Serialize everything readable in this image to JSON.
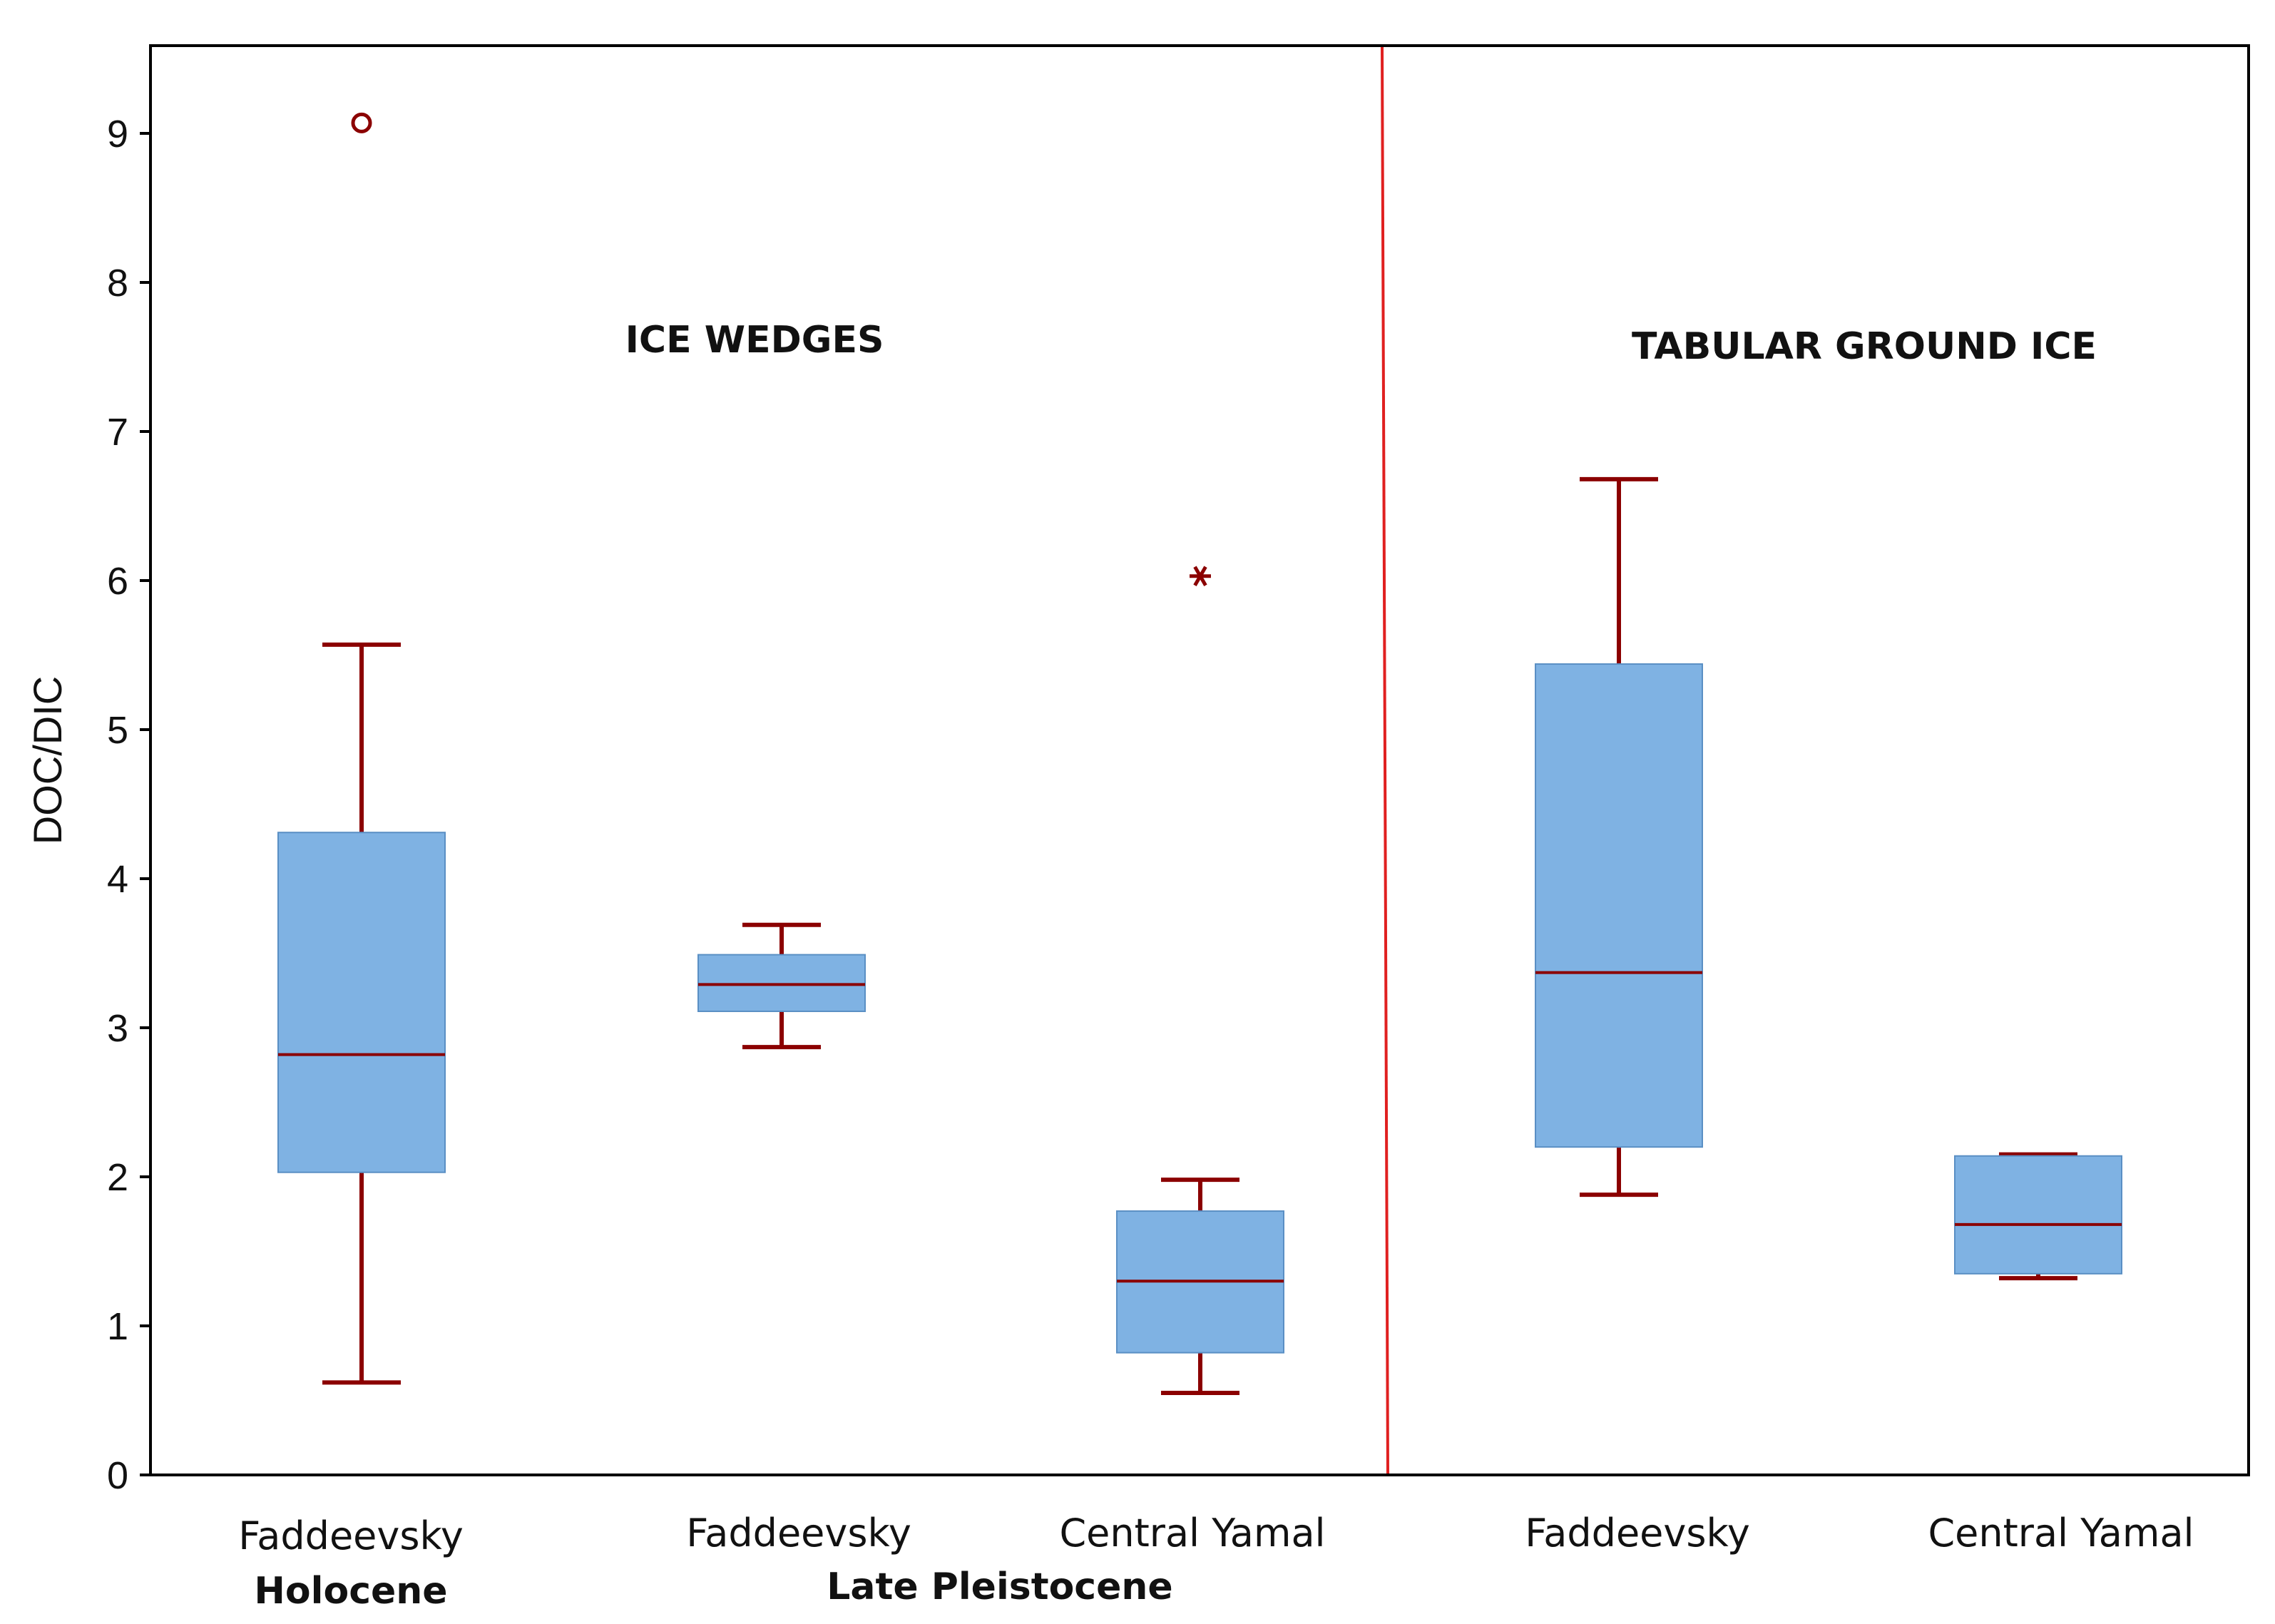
{
  "colors": {
    "box_fill": "#7fb2e3",
    "box_stroke": "#5a8fc4",
    "whisker": "#8b0000",
    "divider": "#e02020",
    "axis": "#000000"
  },
  "chart_data": {
    "type": "boxplot",
    "ylabel": "DOC/DIC",
    "ylim": [
      0,
      9.6
    ],
    "yticks": [
      0,
      1,
      2,
      3,
      4,
      5,
      6,
      7,
      8,
      9
    ],
    "regions": [
      {
        "label": "ICE WEDGES"
      },
      {
        "label": "TABULAR GROUND ICE"
      }
    ],
    "groups": [
      {
        "label": "Holocene"
      },
      {
        "label": "Late Pleistocene"
      }
    ],
    "boxes": [
      {
        "category": "Faddeevsky",
        "min": 0.62,
        "q1": 2.03,
        "median": 2.82,
        "q3": 4.31,
        "max": 5.57,
        "outliers": [
          9.07
        ],
        "extremes": []
      },
      {
        "category": "Faddeevsky",
        "min": 2.87,
        "q1": 3.11,
        "median": 3.29,
        "q3": 3.49,
        "max": 3.69,
        "outliers": [],
        "extremes": []
      },
      {
        "category": "Central Yamal",
        "min": 0.55,
        "q1": 0.82,
        "median": 1.3,
        "q3": 1.77,
        "max": 1.98,
        "outliers": [],
        "extremes": [
          6.03
        ]
      },
      {
        "category": "Faddeevsky",
        "min": 1.88,
        "q1": 2.2,
        "median": 3.37,
        "q3": 5.44,
        "max": 6.68,
        "outliers": [],
        "extremes": []
      },
      {
        "category": "Central Yamal",
        "min": 1.32,
        "q1": 1.35,
        "median": 1.68,
        "q3": 2.14,
        "max": 2.15,
        "outliers": [],
        "extremes": []
      }
    ]
  }
}
